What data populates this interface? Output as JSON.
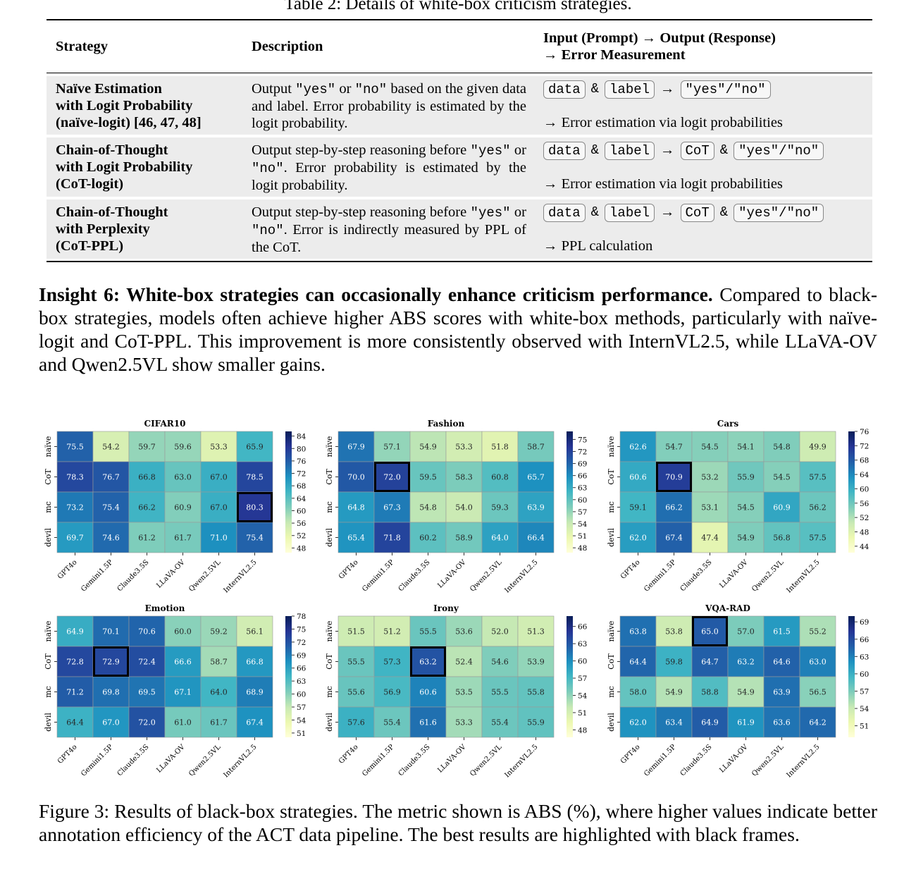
{
  "table": {
    "caption": "Table 2: Details of white-box criticism strategies.",
    "headers": {
      "strategy": "Strategy",
      "description": "Description",
      "io_line1": "Input (Prompt) → Output (Response)",
      "io_line2": "→ Error Measurement"
    },
    "rows": [
      {
        "name1": "Naïve Estimation",
        "name2": "with Logit Probability",
        "name3": "(naïve-logit) [46, 47, 48]",
        "desc": "Output \"yes\" or \"no\" based on the given data and label. Error probability is estimated by the logit probability.",
        "tokens": [
          "data",
          "&",
          "label",
          "→",
          "\"yes\"/\"no\""
        ],
        "measure": "→ Error estimation via logit probabilities"
      },
      {
        "name1": "Chain-of-Thought",
        "name2": "with Logit Probability",
        "name3": "(CoT-logit)",
        "desc": "Output step-by-step reasoning before \"yes\" or \"no\". Error probability is estimated by the logit probability.",
        "tokens": [
          "data",
          "&",
          "label",
          "→",
          "CoT",
          "&",
          "\"yes\"/\"no\""
        ],
        "measure": "→ Error estimation via logit probabilities"
      },
      {
        "name1": "Chain-of-Thought",
        "name2": "with Perplexity",
        "name3": "(CoT-PPL)",
        "desc": "Output step-by-step reasoning before \"yes\" or \"no\". Error is indirectly measured by PPL of the CoT.",
        "tokens": [
          "data",
          "&",
          "label",
          "→",
          "CoT",
          "&",
          "\"yes\"/\"no\""
        ],
        "measure": "→ PPL calculation"
      }
    ]
  },
  "insight": {
    "bold": "Insight 6: White-box strategies can occasionally enhance criticism performance.",
    "text": " Compared to black-box strategies, models often achieve higher ABS scores with white-box methods, particularly with naïve-logit and CoT-PPL. This improvement is more consistently observed with InternVL2.5, while LLaVA-OV and Qwen2.5VL show smaller gains."
  },
  "figure_caption": "Figure 3: Results of black-box strategies. The metric shown is ABS (%), where higher values indicate better annotation efficiency of the ACT data pipeline. The best results are highlighted with black frames.",
  "chart_data": [
    {
      "type": "heatmap",
      "title": "CIFAR10",
      "colormap": "YlGnBu",
      "rows": [
        "naïve",
        "CoT",
        "mc",
        "devil"
      ],
      "cols": [
        "GPT4o",
        "Gemini1.5P",
        "Claude3.5S",
        "LLaVA-OV",
        "Qwen2.5VL",
        "InternVL2.5"
      ],
      "values": [
        [
          75.5,
          54.2,
          59.7,
          59.6,
          53.3,
          65.9
        ],
        [
          78.3,
          76.7,
          66.8,
          63.0,
          67.0,
          78.5
        ],
        [
          73.2,
          75.4,
          66.2,
          60.9,
          67.0,
          80.3
        ],
        [
          69.7,
          74.6,
          61.2,
          61.7,
          71.0,
          75.4
        ]
      ],
      "best": [
        2,
        5
      ],
      "colorbar_ticks": [
        48,
        52,
        56,
        60,
        64,
        68,
        72,
        76,
        80,
        84
      ],
      "vmin": 46.5,
      "vmax": 85.5
    },
    {
      "type": "heatmap",
      "title": "Fashion",
      "colormap": "YlGnBu",
      "rows": [
        "naïve",
        "CoT",
        "mc",
        "devil"
      ],
      "cols": [
        "GPT4o",
        "Gemini1.5P",
        "Claude3.5S",
        "LLaVA-OV",
        "Qwen2.5VL",
        "InternVL2.5"
      ],
      "values": [
        [
          67.9,
          57.1,
          54.9,
          53.3,
          51.8,
          58.7
        ],
        [
          70.0,
          72.0,
          59.5,
          58.3,
          60.8,
          65.7
        ],
        [
          64.8,
          67.3,
          54.8,
          54.0,
          59.3,
          63.9
        ],
        [
          65.4,
          71.8,
          60.2,
          58.9,
          64.0,
          66.4
        ]
      ],
      "best": [
        1,
        1
      ],
      "colorbar_ticks": [
        48,
        51,
        54,
        57,
        60,
        63,
        66,
        69,
        72,
        75
      ],
      "vmin": 46.8,
      "vmax": 77
    },
    {
      "type": "heatmap",
      "title": "Cars",
      "colormap": "YlGnBu",
      "rows": [
        "naïve",
        "CoT",
        "mc",
        "devil"
      ],
      "cols": [
        "GPT4o",
        "Gemini1.5P",
        "Claude3.5S",
        "LLaVA-OV",
        "Qwen2.5VL",
        "InternVL2.5"
      ],
      "values": [
        [
          62.6,
          54.7,
          54.5,
          54.1,
          54.8,
          49.9
        ],
        [
          60.6,
          70.9,
          53.2,
          55.9,
          54.5,
          57.5
        ],
        [
          59.1,
          66.2,
          53.1,
          54.5,
          60.9,
          56.2
        ],
        [
          62.0,
          67.4,
          47.4,
          54.9,
          56.8,
          57.5
        ]
      ],
      "best": [
        1,
        1
      ],
      "colorbar_ticks": [
        44,
        48,
        52,
        56,
        60,
        64,
        68,
        72,
        76
      ],
      "vmin": 42.2,
      "vmax": 76
    },
    {
      "type": "heatmap",
      "title": "Emotion",
      "colormap": "YlGnBu",
      "rows": [
        "naïve",
        "CoT",
        "mc",
        "devil"
      ],
      "cols": [
        "GPT4o",
        "Gemini1.5P",
        "Claude3.5S",
        "LLaVA-OV",
        "Qwen2.5VL",
        "InternVL2.5"
      ],
      "values": [
        [
          64.9,
          70.1,
          70.6,
          60.0,
          59.2,
          56.1
        ],
        [
          72.8,
          72.9,
          72.4,
          66.6,
          58.7,
          66.8
        ],
        [
          71.2,
          69.8,
          69.5,
          67.1,
          64.0,
          68.9
        ],
        [
          64.4,
          67.0,
          72.0,
          61.0,
          61.7,
          67.4
        ]
      ],
      "best": [
        1,
        1
      ],
      "colorbar_ticks": [
        51,
        54,
        57,
        60,
        63,
        66,
        69,
        72,
        75,
        78
      ],
      "vmin": 50,
      "vmax": 78
    },
    {
      "type": "heatmap",
      "title": "Irony",
      "colormap": "YlGnBu",
      "rows": [
        "naïve",
        "CoT",
        "mc",
        "devil"
      ],
      "cols": [
        "GPT4o",
        "Gemini1.5P",
        "Claude3.5S",
        "LLaVA-OV",
        "Qwen2.5VL",
        "InternVL2.5"
      ],
      "values": [
        [
          51.5,
          51.2,
          55.5,
          53.6,
          52.0,
          51.3
        ],
        [
          55.5,
          57.3,
          63.2,
          52.4,
          54.6,
          53.9
        ],
        [
          55.6,
          56.9,
          60.6,
          53.5,
          55.5,
          55.8
        ],
        [
          57.6,
          55.4,
          61.6,
          53.3,
          55.4,
          55.9
        ]
      ],
      "best": [
        1,
        2
      ],
      "colorbar_ticks": [
        48,
        51,
        54,
        57,
        60,
        63,
        66
      ],
      "vmin": 46.7,
      "vmax": 67.8
    },
    {
      "type": "heatmap",
      "title": "VQA-RAD",
      "colormap": "YlGnBu",
      "rows": [
        "naïve",
        "CoT",
        "mc",
        "devil"
      ],
      "cols": [
        "GPT4o",
        "Gemini1.5P",
        "Claude3.5S",
        "LLaVA-OV",
        "Qwen2.5VL",
        "InternVL2.5"
      ],
      "values": [
        [
          63.8,
          53.8,
          65.0,
          57.0,
          61.5,
          55.2
        ],
        [
          64.4,
          59.8,
          64.7,
          63.2,
          64.6,
          63.0
        ],
        [
          58.0,
          54.9,
          58.8,
          54.9,
          63.9,
          56.5
        ],
        [
          62.0,
          63.4,
          64.9,
          61.9,
          63.6,
          64.2
        ]
      ],
      "best": [
        0,
        2
      ],
      "colorbar_ticks": [
        51,
        54,
        57,
        60,
        63,
        66,
        69
      ],
      "vmin": 49,
      "vmax": 70
    }
  ]
}
